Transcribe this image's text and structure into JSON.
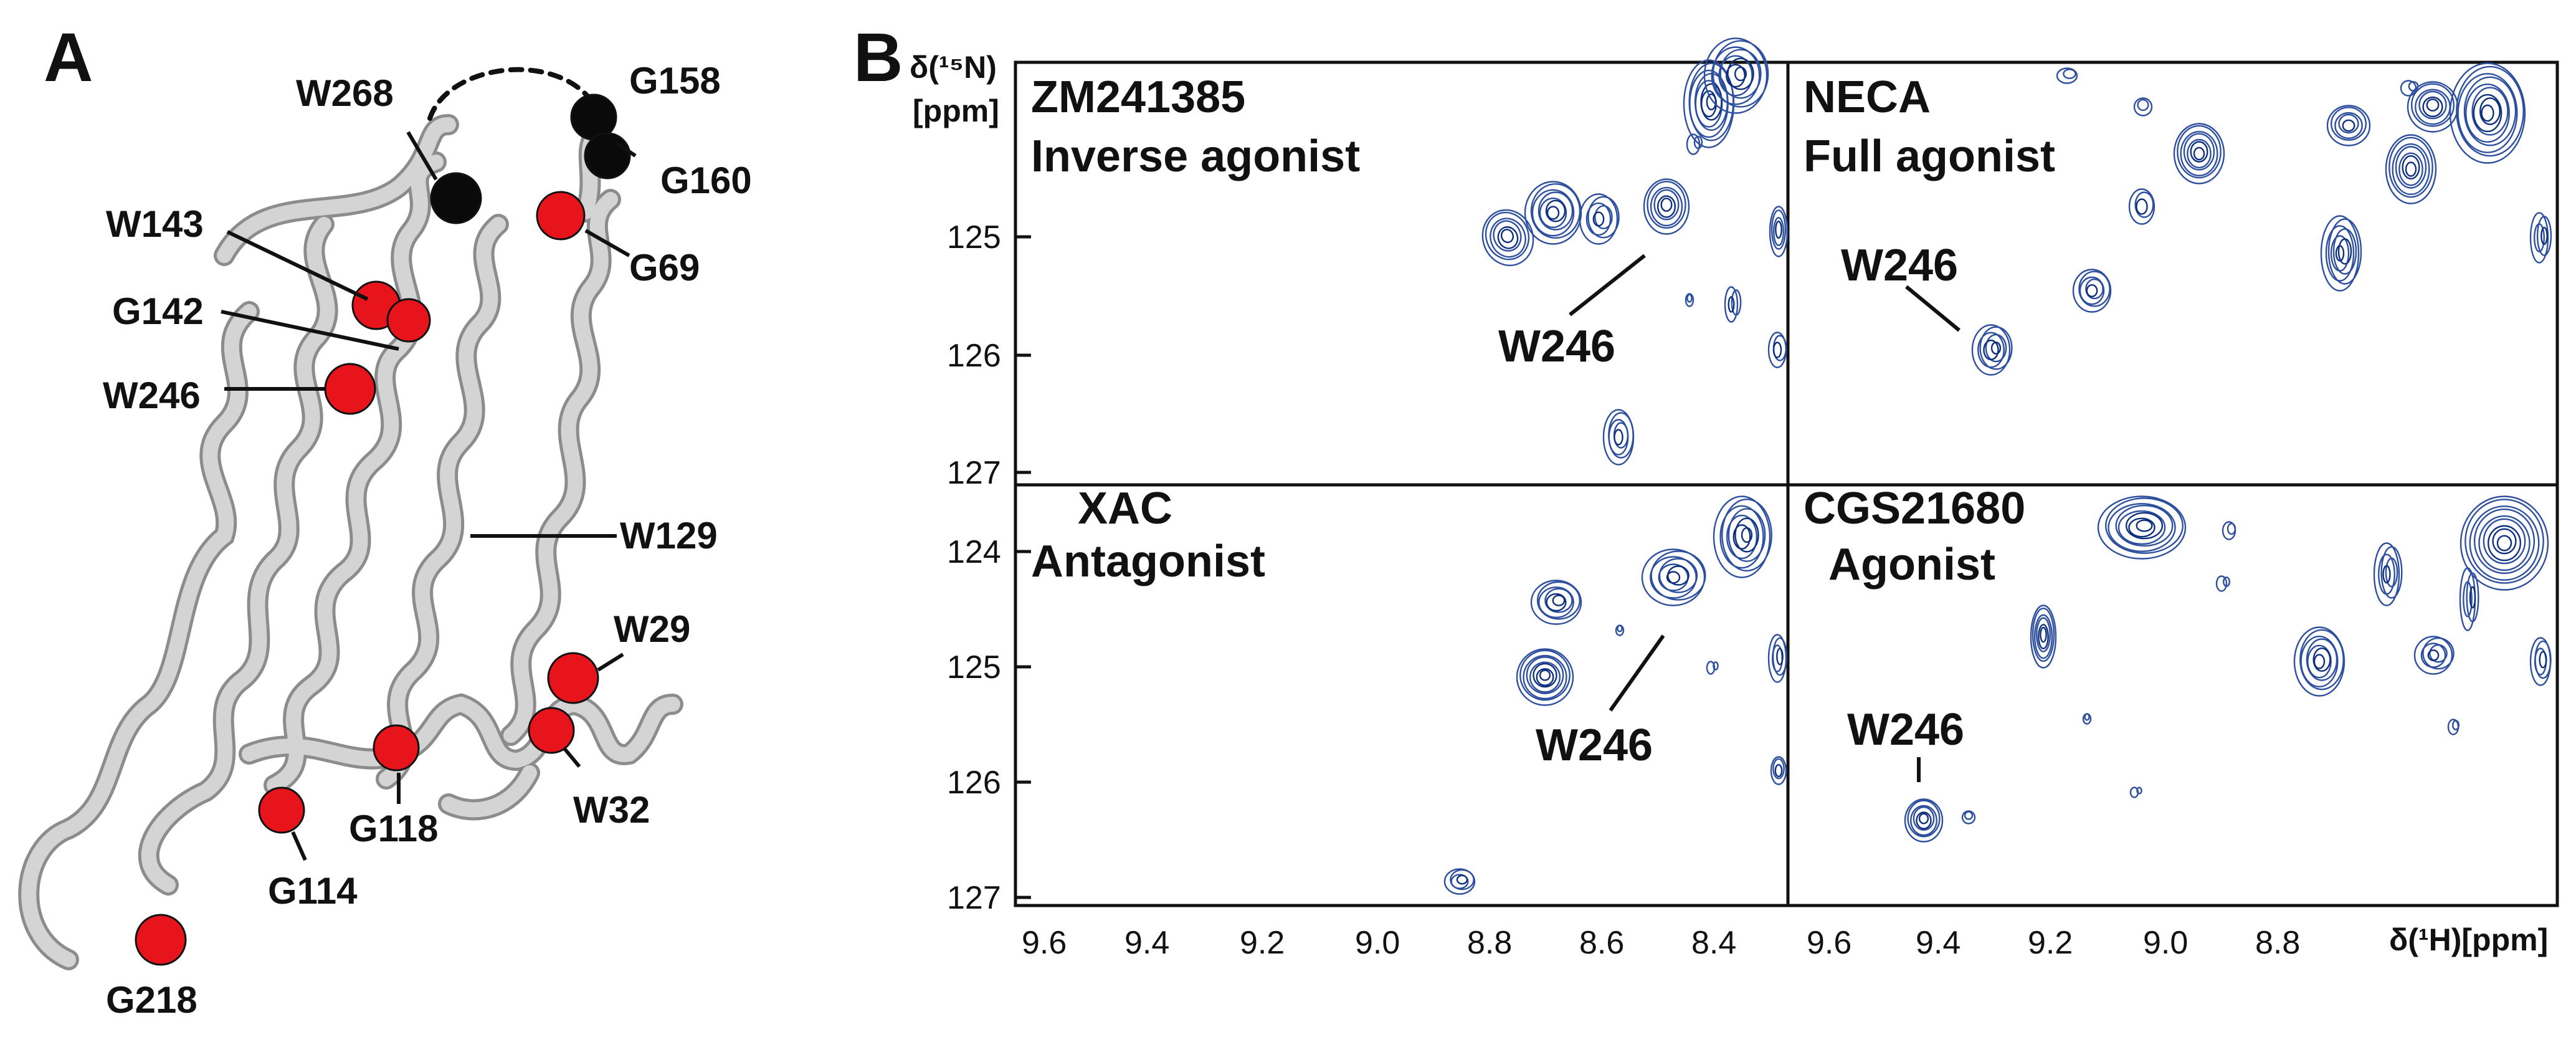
{
  "figure": {
    "panel_a": {
      "letter": "A",
      "labels": {
        "W268": "W268",
        "G158": "G158",
        "G160": "G160",
        "W143": "W143",
        "G69": "G69",
        "G142": "G142",
        "W246": "W246",
        "W129": "W129",
        "W29": "W29",
        "W32": "W32",
        "G118": "G118",
        "G114": "G114",
        "G218": "G218"
      },
      "colors": {
        "helix": "#d4d4d4",
        "helix_edge": "#8c8c8c",
        "tryptophan_glycine": "#e8141b",
        "loop_residue": "#0a0a0a"
      }
    },
    "panel_b": {
      "letter": "B",
      "y_axis_label": "δ(¹⁵N) [ppm]",
      "y_axis_unit": "[ppm]",
      "y_axis_nucleus": "δ(¹⁵N)",
      "x_axis_label": "δ(¹H)[ppm]",
      "spectra": [
        {
          "ligand": "ZM241385",
          "class": "Inverse agonist",
          "peak_label": "W246",
          "y_ticks": [
            "125",
            "126",
            "127"
          ]
        },
        {
          "ligand": "NECA",
          "class": "Full agonist",
          "peak_label": "W246",
          "y_ticks": []
        },
        {
          "ligand": "XAC",
          "class": "Antagonist",
          "peak_label": "W246",
          "y_ticks": [
            "124",
            "125",
            "126",
            "127"
          ]
        },
        {
          "ligand": "CGS21680",
          "class": "Agonist",
          "peak_label": "W246",
          "y_ticks": []
        }
      ],
      "x_ticks_left": [
        "9.6",
        "9.4",
        "9.2",
        "9.0",
        "8.8",
        "8.6",
        "8.4"
      ],
      "x_ticks_right": [
        "9.6",
        "9.4",
        "9.2",
        "9.0",
        "8.8"
      ],
      "colors": {
        "contour": "#2d4f9e",
        "contour_dark": "#0d2f7c"
      }
    }
  }
}
